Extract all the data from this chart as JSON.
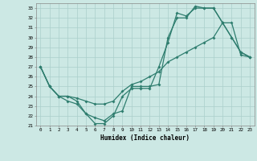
{
  "xlabel": "Humidex (Indice chaleur)",
  "bg_color": "#cce8e4",
  "line_color": "#2e7d6e",
  "grid_color": "#aacfcb",
  "xlim": [
    -0.5,
    23.5
  ],
  "ylim": [
    21,
    33.5
  ],
  "yticks": [
    21,
    22,
    23,
    24,
    25,
    26,
    27,
    28,
    29,
    30,
    31,
    32,
    33
  ],
  "xticks": [
    0,
    1,
    2,
    3,
    4,
    5,
    6,
    7,
    8,
    9,
    10,
    11,
    12,
    13,
    14,
    15,
    16,
    17,
    18,
    19,
    20,
    21,
    22,
    23
  ],
  "line1_x": [
    0,
    1,
    2,
    3,
    4,
    5,
    6,
    7,
    8,
    9,
    10,
    11,
    12,
    13,
    14,
    15,
    16,
    17,
    18,
    19,
    20,
    21,
    22,
    23
  ],
  "line1_y": [
    27,
    25,
    24,
    23.5,
    23.2,
    22.2,
    21.2,
    21.2,
    22.0,
    24.0,
    24.8,
    24.8,
    24.8,
    27.0,
    29.5,
    32.5,
    32.2,
    33.0,
    33.0,
    33.0,
    31.5,
    30.0,
    28.5,
    28.0
  ],
  "line2_x": [
    0,
    1,
    2,
    3,
    4,
    5,
    6,
    7,
    8,
    9,
    10,
    11,
    12,
    13,
    14,
    15,
    16,
    17,
    18,
    19,
    20,
    21,
    22,
    23
  ],
  "line2_y": [
    27,
    25,
    24,
    24,
    23.5,
    22.2,
    21.8,
    21.5,
    22.2,
    22.5,
    25.0,
    25.0,
    25.0,
    25.2,
    30.0,
    32.0,
    32.0,
    33.2,
    33.0,
    33.0,
    31.5,
    30.0,
    28.5,
    28.0
  ],
  "line3_x": [
    0,
    1,
    2,
    3,
    4,
    5,
    6,
    7,
    8,
    9,
    10,
    11,
    12,
    13,
    14,
    15,
    16,
    17,
    18,
    19,
    20,
    21,
    22,
    23
  ],
  "line3_y": [
    27,
    25,
    24,
    24,
    23.8,
    23.5,
    23.2,
    23.2,
    23.5,
    24.5,
    25.2,
    25.5,
    26.0,
    26.5,
    27.5,
    28.0,
    28.5,
    29.0,
    29.5,
    30.0,
    31.5,
    31.5,
    28.2,
    28.0
  ]
}
